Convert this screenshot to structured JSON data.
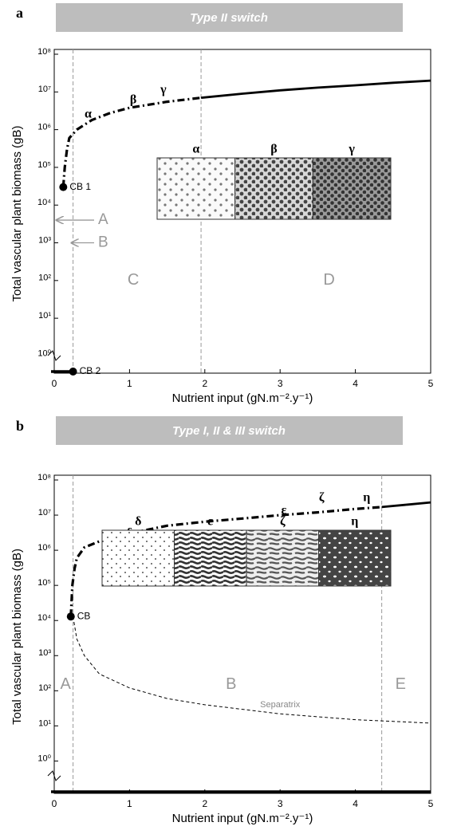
{
  "chart_data": [
    {
      "type": "line",
      "panel_label": "a",
      "title": "Type II switch",
      "xlabel": "Nutrient input (gN.m⁻².y⁻¹)",
      "ylabel": "Total vascular plant biomass (gB)",
      "log_y": true,
      "xlim": [
        0,
        5
      ],
      "ylim": [
        0.35,
        100000000
      ],
      "xticks": [
        0,
        1,
        2,
        3,
        4,
        5
      ],
      "yticks": [
        {
          "value": 1,
          "label": "10⁰"
        },
        {
          "value": 10,
          "label": "10¹"
        },
        {
          "value": 100,
          "label": "10²"
        },
        {
          "value": 1000,
          "label": "10³"
        },
        {
          "value": 10000,
          "label": "10⁴"
        },
        {
          "value": 100000,
          "label": "10⁵"
        },
        {
          "value": 1000000,
          "label": "10⁶"
        },
        {
          "value": 10000000,
          "label": "10⁷"
        },
        {
          "value": 100000000,
          "label": "10⁸"
        }
      ],
      "series": [
        {
          "color": "#000000",
          "style": "dashdot",
          "x": [
            0.12,
            0.14,
            0.17,
            0.2,
            0.3,
            0.5,
            0.75,
            1,
            1.5,
            1.95
          ],
          "values": [
            30000,
            100000,
            300000,
            600000,
            1000000,
            1800000,
            2800000,
            3800000,
            5500000,
            7000000
          ]
        },
        {
          "color": "#000000",
          "style": "solid",
          "x": [
            1.95,
            2.5,
            3,
            3.5,
            4,
            4.5,
            5
          ],
          "values": [
            7000000,
            9000000,
            11000000,
            13000000,
            15000000,
            17500000,
            20000000
          ]
        }
      ],
      "lower_branch": {
        "x": [
          0,
          0.25
        ]
      },
      "points": [
        {
          "label": "CB 1",
          "x": 0.12,
          "y": 30000
        },
        {
          "label": "CB 2",
          "x": 0.25
        }
      ],
      "arrows": [
        {
          "label": "A",
          "x": 0,
          "y": 4000
        },
        {
          "label": "B",
          "x": 0.2,
          "y": 1000
        }
      ],
      "vlines": [
        0.25,
        1.95
      ],
      "regions": [
        {
          "label": "C",
          "x": 1.05,
          "y": 100
        },
        {
          "label": "D",
          "x": 3.65,
          "y": 100
        }
      ],
      "pattern_labels": [
        {
          "label": "α",
          "x": 0.45,
          "y": 2500000
        },
        {
          "label": "β",
          "x": 1.05,
          "y": 6000000
        },
        {
          "label": "γ",
          "x": 1.45,
          "y": 11000000
        }
      ],
      "inset_labels": [
        "α",
        "β",
        "γ"
      ]
    },
    {
      "type": "line",
      "panel_label": "b",
      "title": "Type I, II & III switch",
      "xlabel": "Nutrient input (gN.m⁻².y⁻¹)",
      "ylabel": "Total vascular plant biomass (gB)",
      "log_y": true,
      "xlim": [
        0,
        5
      ],
      "ylim": [
        0.12,
        100000000
      ],
      "xticks": [
        0,
        1,
        2,
        3,
        4,
        5
      ],
      "yticks": [
        {
          "value": 1,
          "label": "10⁰"
        },
        {
          "value": 10,
          "label": "10¹"
        },
        {
          "value": 100,
          "label": "10²"
        },
        {
          "value": 1000,
          "label": "10³"
        },
        {
          "value": 10000,
          "label": "10⁴"
        },
        {
          "value": 100000,
          "label": "10⁵"
        },
        {
          "value": 1000000,
          "label": "10⁶"
        },
        {
          "value": 10000000,
          "label": "10⁷"
        },
        {
          "value": 100000000,
          "label": "10⁸"
        }
      ],
      "series": [
        {
          "color": "#000000",
          "style": "dashdot",
          "x": [
            0.22,
            0.24,
            0.27,
            0.3,
            0.4,
            0.6,
            1,
            1.5,
            2,
            2.5,
            3,
            3.5,
            4,
            4.35
          ],
          "values": [
            13000,
            100000,
            300000,
            600000,
            1200000,
            1800000,
            3000000,
            5000000,
            6500000,
            8000000,
            10000000,
            12000000,
            15000000,
            17000000
          ]
        },
        {
          "color": "#000000",
          "style": "solid",
          "x": [
            4.35,
            4.7,
            5
          ],
          "values": [
            17000000,
            20000000,
            23000000
          ]
        },
        {
          "color": "#000000",
          "style": "dashed",
          "label": "Separatrix",
          "label_x": 3.0,
          "label_y": 40,
          "x": [
            0.25,
            0.3,
            0.4,
            0.6,
            1,
            1.5,
            2,
            3,
            4,
            5
          ],
          "values": [
            13000,
            3000,
            1000,
            300,
            120,
            60,
            40,
            22,
            15,
            12
          ]
        }
      ],
      "lower_branch": {
        "x": [
          0,
          5
        ]
      },
      "points": [
        {
          "label": "CB",
          "x": 0.22,
          "y": 13000
        }
      ],
      "arrows": [],
      "vlines": [
        0.25,
        4.35
      ],
      "regions": [
        {
          "label": "A",
          "x": 0.15,
          "y": 150
        },
        {
          "label": "B",
          "x": 2.35,
          "y": 150
        },
        {
          "label": "E",
          "x": 4.6,
          "y": 150
        }
      ],
      "pattern_labels": [
        {
          "label": "δ",
          "x": 1.0,
          "y": 3000000
        },
        {
          "label": "ε",
          "x": 3.05,
          "y": 13000000
        },
        {
          "label": "ζ",
          "x": 3.55,
          "y": 30000000
        },
        {
          "label": "η",
          "x": 4.15,
          "y": 30000000
        }
      ],
      "inset_labels": [
        "δ",
        "ε",
        "ζ",
        "η"
      ]
    }
  ]
}
